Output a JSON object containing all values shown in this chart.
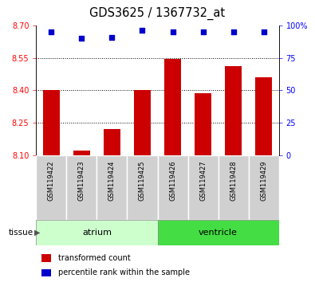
{
  "title": "GDS3625 / 1367732_at",
  "samples": [
    "GSM119422",
    "GSM119423",
    "GSM119424",
    "GSM119425",
    "GSM119426",
    "GSM119427",
    "GSM119428",
    "GSM119429"
  ],
  "bar_values": [
    8.4,
    8.12,
    8.22,
    8.4,
    8.545,
    8.385,
    8.51,
    8.46
  ],
  "bar_baseline": 8.1,
  "percentile_values": [
    95,
    90,
    91,
    96,
    95,
    95,
    95,
    95
  ],
  "bar_color": "#cc0000",
  "dot_color": "#0000cc",
  "ylim_left": [
    8.1,
    8.7
  ],
  "ylim_right": [
    0,
    100
  ],
  "yticks_left": [
    8.1,
    8.25,
    8.4,
    8.55,
    8.7
  ],
  "yticks_right": [
    0,
    25,
    50,
    75,
    100
  ],
  "grid_values": [
    8.25,
    8.4,
    8.55
  ],
  "atrium_color_light": "#ccffcc",
  "atrium_color": "#ccffcc",
  "ventricle_color": "#44dd44",
  "sample_bg_color": "#d0d0d0",
  "tissue_label": "tissue",
  "legend_bar_label": "transformed count",
  "legend_dot_label": "percentile rank within the sample"
}
